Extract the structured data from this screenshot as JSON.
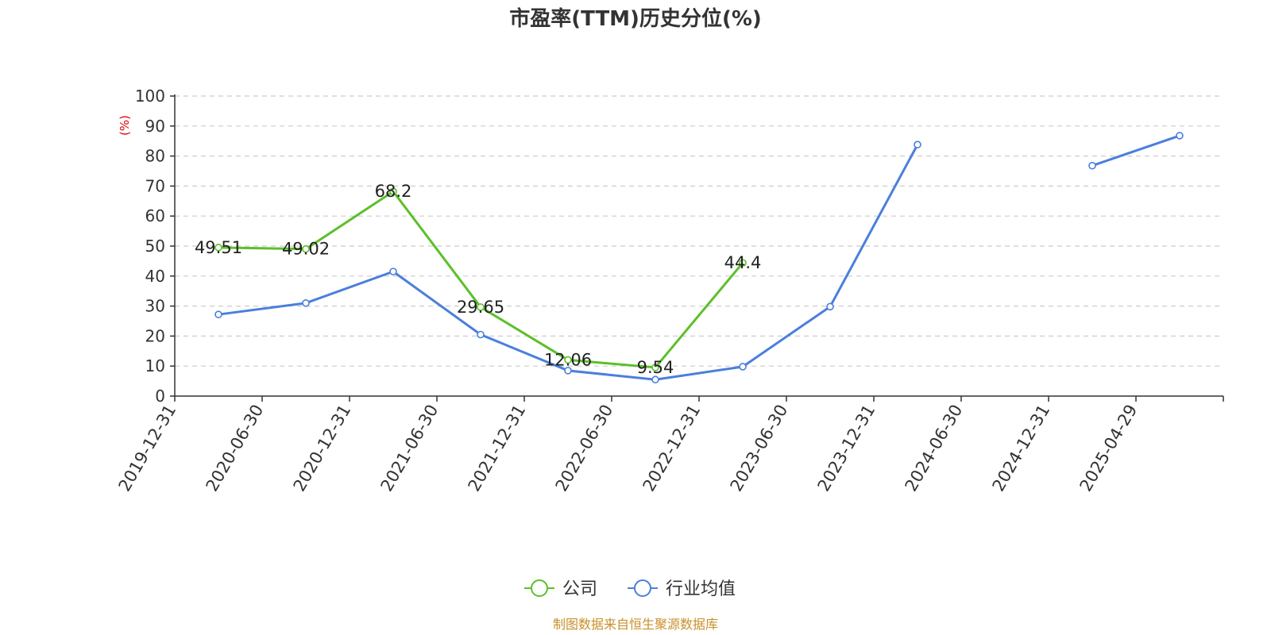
{
  "chart_data": {
    "type": "line",
    "title": "市盈率(TTM)历史分位(%)",
    "ylabel": "(%)",
    "ylim": [
      0,
      100
    ],
    "y_ticks": [
      0,
      10,
      20,
      30,
      40,
      50,
      60,
      70,
      80,
      90,
      100
    ],
    "categories": [
      "2019-12-31",
      "2020-06-30",
      "2020-12-31",
      "2021-06-30",
      "2021-12-31",
      "2022-06-30",
      "2022-12-31",
      "2023-06-30",
      "2023-12-31",
      "2024-06-30",
      "2024-12-31",
      "2025-04-29"
    ],
    "series": [
      {
        "name": "公司",
        "color": "#5cbf2a",
        "values": [
          49.51,
          49.02,
          68.2,
          29.65,
          12.06,
          9.54,
          44.4,
          null,
          null,
          null,
          null,
          null
        ],
        "show_labels": true
      },
      {
        "name": "行业均值",
        "color": "#4a7fdc",
        "values": [
          27.2,
          31.0,
          41.5,
          20.5,
          8.5,
          5.5,
          9.8,
          29.8,
          83.8,
          null,
          76.8,
          86.8
        ],
        "show_labels": false
      }
    ],
    "grid": true,
    "legend_position": "bottom-center",
    "source_text": "制图数据来自恒生聚源数据库",
    "source_color": "#c8902a",
    "ylabel_color": "#e00000"
  }
}
